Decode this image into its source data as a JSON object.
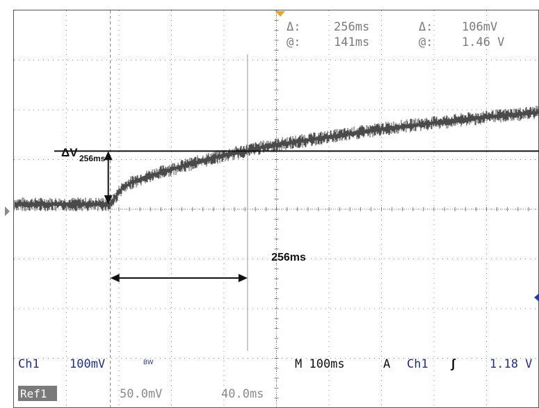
{
  "chart_data": {
    "type": "line",
    "title": "",
    "xlabel": "",
    "ylabel": "",
    "x_unit": "ms",
    "y_unit": "mV",
    "xlim": [
      -180,
      800
    ],
    "ylim": [
      -500,
      300
    ],
    "grid": true,
    "x_divs": 10,
    "y_divs": 8,
    "series": [
      {
        "name": "",
        "x": [
          -180,
          -100,
          -30,
          0,
          20,
          40,
          60,
          80,
          100,
          130,
          160,
          200,
          250,
          300,
          350,
          400,
          450,
          500,
          550,
          600,
          650,
          700,
          750,
          800
        ],
        "y": [
          -90,
          -90,
          -90,
          -90,
          -60,
          -46,
          -38,
          -31,
          -24,
          -15,
          -6,
          5,
          17,
          28,
          36,
          44,
          52,
          60,
          67,
          73,
          79,
          85,
          90,
          95
        ]
      }
    ],
    "annotations": {
      "delta_v_label": "ΔV",
      "delta_v_subscript": "256ms",
      "time_span_label": "256ms",
      "time_span_start_ms": 0,
      "time_span_end_ms": 256,
      "reference_level_mV": 17
    }
  },
  "readout": {
    "delta_symbol": "Δ:",
    "at_symbol": "@:",
    "time_delta": "256ms",
    "time_at": "141ms",
    "volt_delta": "106mV",
    "volt_at": "1.46 V"
  },
  "status": {
    "ch1_label": "Ch1",
    "ch1_scale": "100mV",
    "bw_label": "BW",
    "timebase": "M 100ms",
    "trigger_mode": "A",
    "trigger_source": "Ch1",
    "trigger_slope_symbol": "∫",
    "trigger_level": "1.18 V",
    "ref1_label": "Ref1",
    "ref1_scale": "50.0mV",
    "ref1_time": "40.0ms"
  }
}
